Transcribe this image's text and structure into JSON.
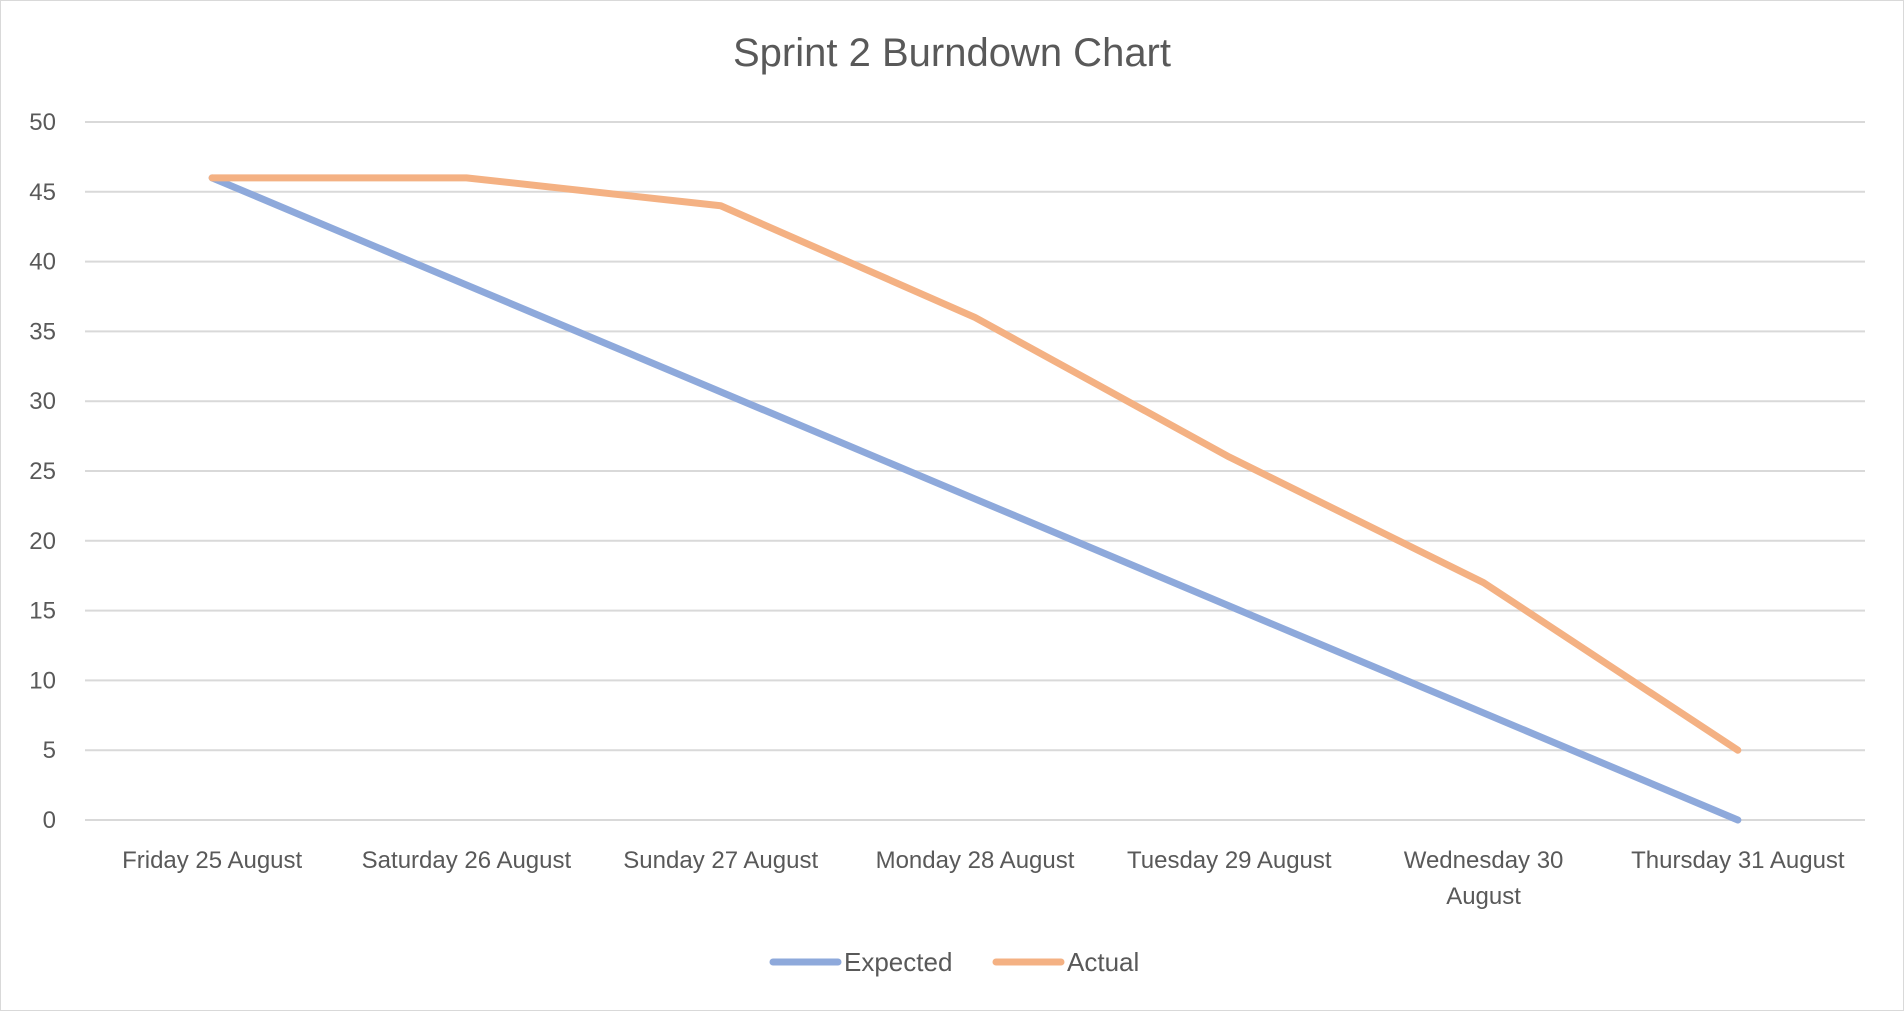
{
  "chart_data": {
    "type": "line",
    "title": "Sprint 2 Burndown Chart",
    "xlabel": "",
    "ylabel": "",
    "categories": [
      [
        "Friday 25 August"
      ],
      [
        "Saturday 26 August"
      ],
      [
        "Sunday 27 August"
      ],
      [
        "Monday 28 August"
      ],
      [
        "Tuesday 29 August"
      ],
      [
        "Wednesday 30",
        "August"
      ],
      [
        "Thursday 31 August"
      ]
    ],
    "ylim": [
      0,
      50
    ],
    "yticks": [
      "0",
      "5",
      "10",
      "15",
      "20",
      "25",
      "30",
      "35",
      "40",
      "45",
      "50"
    ],
    "grid": true,
    "legend_position": "bottom",
    "series": [
      {
        "name": "Expected",
        "color": "#8EA9DB",
        "values": [
          46,
          38.33,
          30.67,
          23,
          15.33,
          7.67,
          0
        ]
      },
      {
        "name": "Actual",
        "color": "#F4B183",
        "values": [
          46,
          46,
          44,
          36,
          26,
          17,
          5
        ]
      }
    ]
  }
}
